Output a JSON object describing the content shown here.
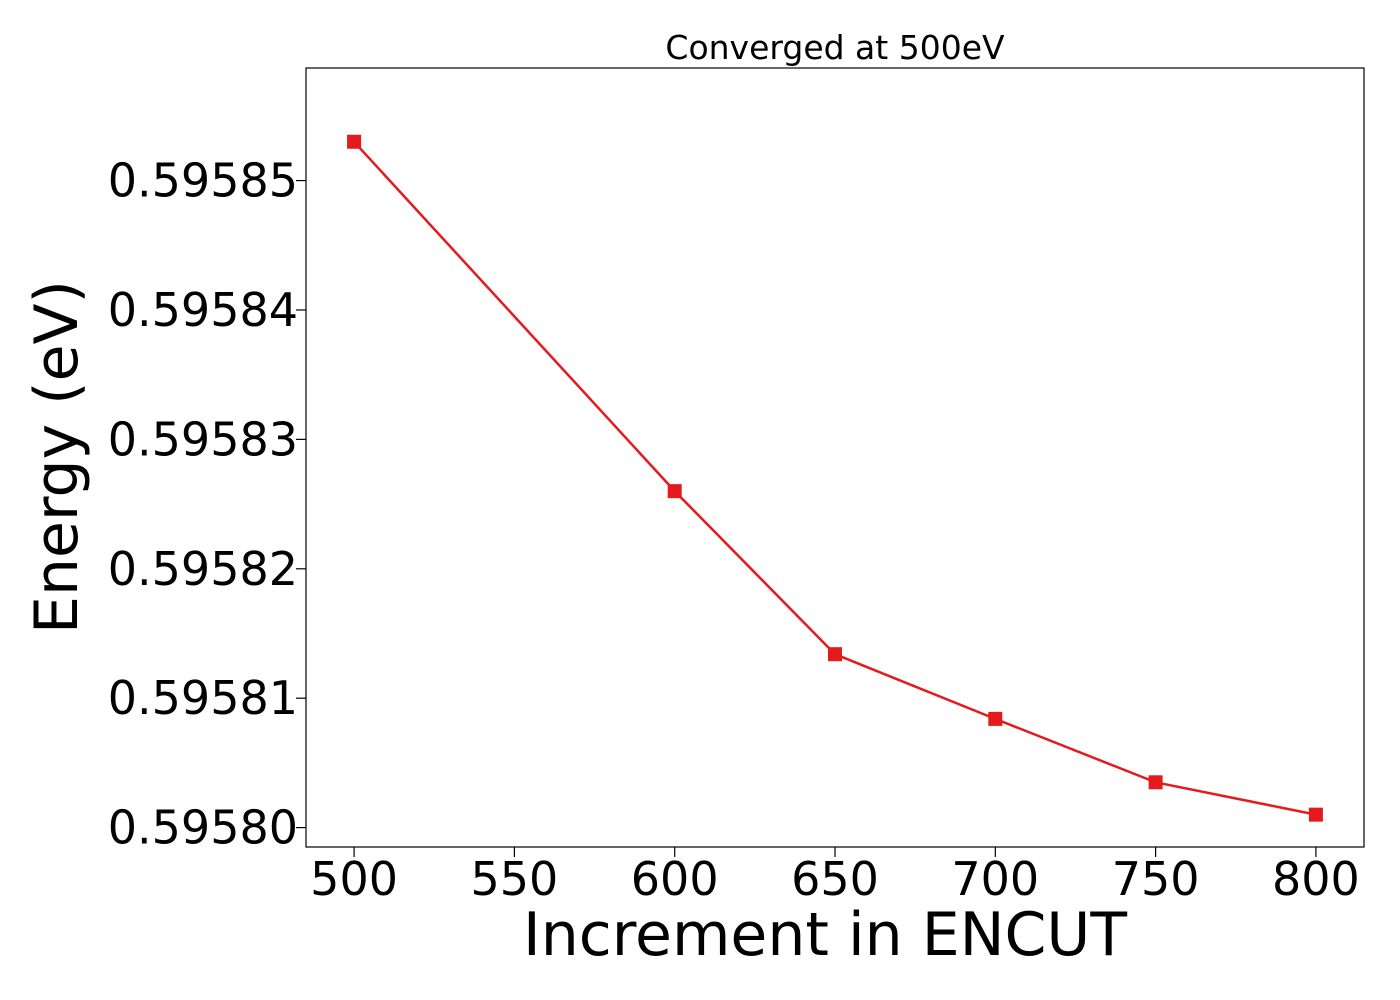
{
  "chart_data": {
    "type": "line",
    "title": "Converged at 500eV",
    "xlabel": "Increment in ENCUT",
    "ylabel": "Energy (eV)",
    "x": [
      500,
      600,
      650,
      700,
      750,
      800
    ],
    "series": [
      {
        "values": [
          0.595853,
          0.595826,
          0.5958134,
          0.5958084,
          0.5958035,
          0.595801
        ],
        "color": "#e41a1c",
        "marker": "square"
      }
    ],
    "xlim": [
      485,
      815
    ],
    "ylim": [
      0.5957985,
      0.5958587
    ],
    "xticks": [
      500,
      550,
      600,
      650,
      700,
      750,
      800
    ],
    "xtick_labels": [
      "500",
      "550",
      "600",
      "650",
      "700",
      "750",
      "800"
    ],
    "yticks": [
      0.5958,
      0.59581,
      0.59582,
      0.59583,
      0.59584,
      0.59585
    ],
    "ytick_labels": [
      "0.59580",
      "0.59581",
      "0.59582",
      "0.59583",
      "0.59584",
      "0.59585"
    ],
    "grid": false,
    "legend": "none"
  }
}
